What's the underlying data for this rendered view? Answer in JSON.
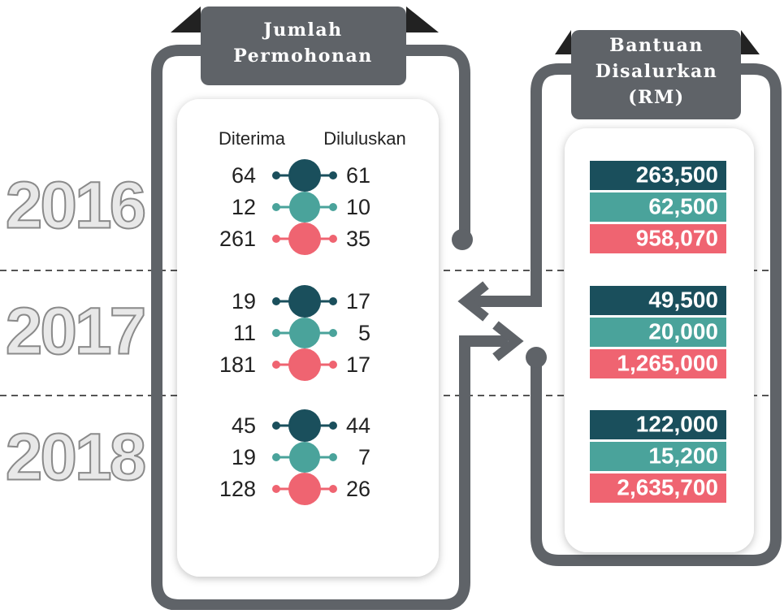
{
  "left_header": {
    "line1": "Jumlah",
    "line2": "Permohonan"
  },
  "right_header": {
    "line1": "Bantuan",
    "line2": "Disalurkan",
    "line3": "(RM)"
  },
  "columns": {
    "received": "Diterima",
    "approved": "Diluluskan"
  },
  "years": [
    {
      "year": "2016",
      "rows": [
        [
          "64",
          "61"
        ],
        [
          "12",
          "10"
        ],
        [
          "261",
          "35"
        ]
      ],
      "amounts": [
        "263,500",
        "62,500",
        "958,070"
      ]
    },
    {
      "year": "2017",
      "rows": [
        [
          "19",
          "17"
        ],
        [
          "11",
          "5"
        ],
        [
          "181",
          "17"
        ]
      ],
      "amounts": [
        "49,500",
        "20,000",
        "1,265,000"
      ]
    },
    {
      "year": "2018",
      "rows": [
        [
          "45",
          "44"
        ],
        [
          "19",
          "7"
        ],
        [
          "128",
          "26"
        ]
      ],
      "amounts": [
        "122,000",
        "15,200",
        "2,635,700"
      ]
    }
  ]
}
